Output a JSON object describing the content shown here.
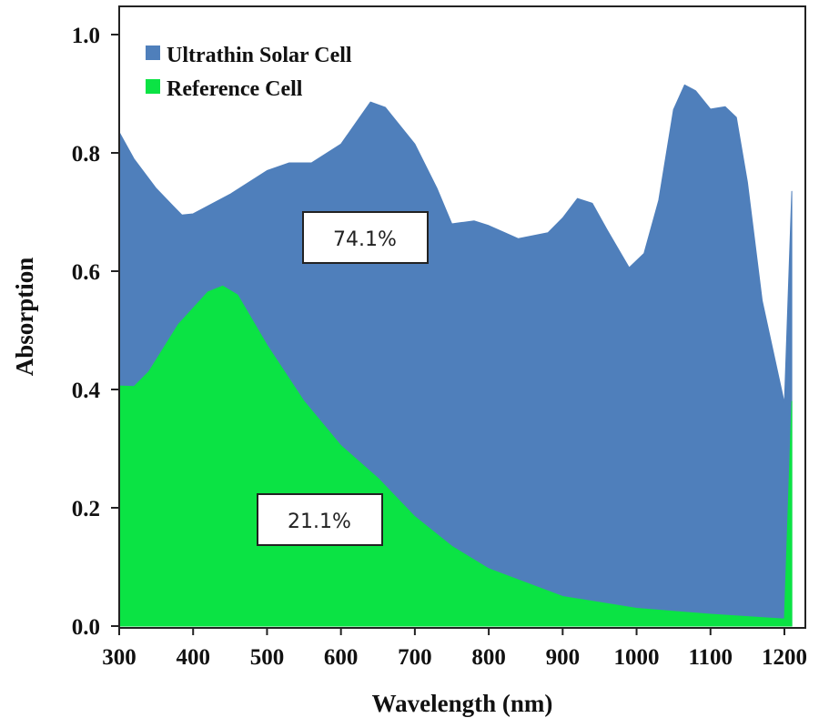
{
  "chart_data": {
    "type": "area",
    "title": "",
    "xlabel": "Wavelength (nm)",
    "ylabel": "Absorption",
    "xlim": [
      300,
      1215
    ],
    "ylim": [
      0,
      1.05
    ],
    "xticks": [
      300,
      400,
      500,
      600,
      700,
      800,
      900,
      1000,
      1100,
      1200
    ],
    "yticks": [
      "0.0",
      "0.2",
      "0.4",
      "0.6",
      "0.8",
      "1.0"
    ],
    "legend_position": "top-left",
    "series": [
      {
        "name": "Ultrathin Solar Cell",
        "color": "#4f7fbb",
        "x": [
          300,
          320,
          350,
          373,
          385,
          400,
          450,
          500,
          530,
          560,
          600,
          640,
          660,
          700,
          730,
          750,
          780,
          800,
          840,
          880,
          900,
          920,
          940,
          960,
          990,
          1010,
          1030,
          1050,
          1065,
          1080,
          1100,
          1120,
          1135,
          1150,
          1170,
          1200,
          1210
        ],
        "y": [
          0.835,
          0.79,
          0.74,
          0.71,
          0.695,
          0.697,
          0.73,
          0.77,
          0.783,
          0.783,
          0.815,
          0.886,
          0.877,
          0.815,
          0.74,
          0.68,
          0.685,
          0.677,
          0.655,
          0.665,
          0.69,
          0.723,
          0.715,
          0.67,
          0.606,
          0.63,
          0.72,
          0.873,
          0.915,
          0.905,
          0.874,
          0.878,
          0.86,
          0.75,
          0.55,
          0.377,
          0.735
        ]
      },
      {
        "name": "Reference Cell",
        "color": "#0be344",
        "x": [
          300,
          320,
          340,
          380,
          420,
          440,
          460,
          500,
          550,
          600,
          650,
          700,
          750,
          800,
          900,
          1000,
          1100,
          1200,
          1210
        ],
        "y": [
          0.406,
          0.405,
          0.43,
          0.51,
          0.565,
          0.575,
          0.56,
          0.475,
          0.38,
          0.305,
          0.25,
          0.185,
          0.135,
          0.097,
          0.05,
          0.03,
          0.02,
          0.012,
          0.38
        ]
      }
    ],
    "annotations": [
      {
        "text": "74.1%",
        "x": 560,
        "y": 0.65
      },
      {
        "text": "21.1%",
        "x": 500,
        "y": 0.18
      }
    ]
  }
}
